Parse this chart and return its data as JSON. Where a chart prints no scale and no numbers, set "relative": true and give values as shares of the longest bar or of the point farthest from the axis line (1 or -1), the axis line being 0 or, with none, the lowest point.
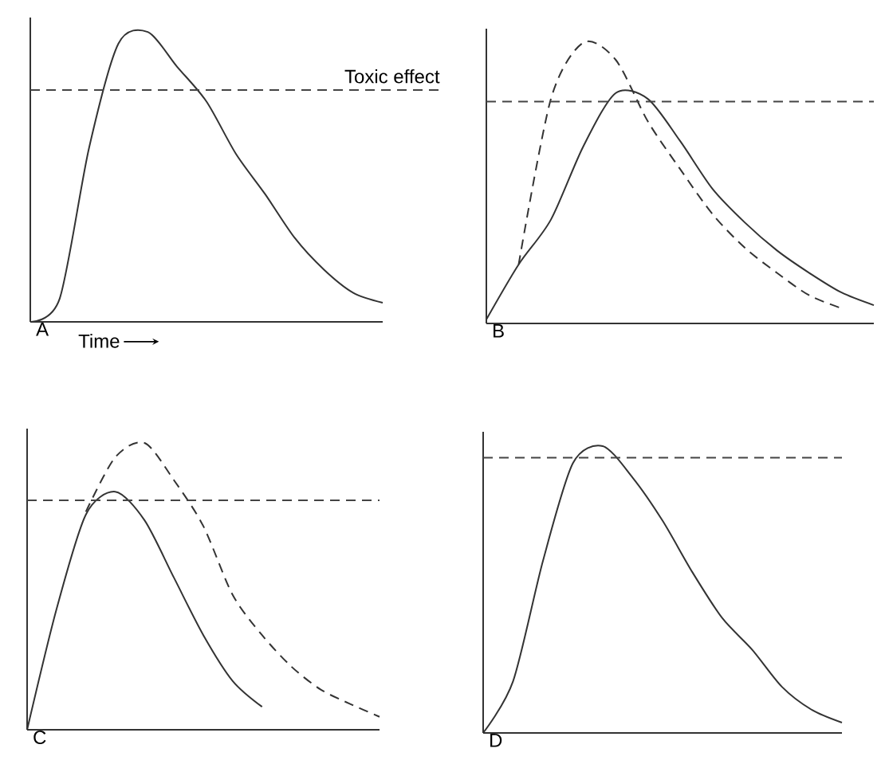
{
  "chart_data": [
    {
      "type": "line",
      "title": "A",
      "xlabel": "Time",
      "relative": true,
      "categories": [
        null,
        null,
        null,
        null,
        null,
        null,
        null,
        null,
        null,
        null,
        null,
        null,
        null
      ],
      "series": [
        {
          "color": "#333333",
          "line_style": "solid",
          "values": [
            0,
            0.08,
            0.6,
            0.96,
            1.0,
            0.88,
            0.76,
            0.58,
            0.44,
            0.29,
            0.18,
            0.1,
            0.066
          ]
        }
      ],
      "ref_lines": [
        {
          "axis": "y",
          "value": 0.8,
          "label": "Toxic effect",
          "line_style": "dashed",
          "color": "#444444"
        }
      ]
    },
    {
      "type": "line",
      "title": "B",
      "relative": true,
      "categories": [
        null,
        null,
        null,
        null,
        null,
        null,
        null,
        null,
        null,
        null,
        null,
        null,
        null
      ],
      "series": [
        {
          "color": "#333333",
          "line_style": "solid",
          "values": [
            0.014,
            0.21,
            0.37,
            0.63,
            0.82,
            0.8,
            0.65,
            0.48,
            0.36,
            0.26,
            0.18,
            0.11,
            0.065
          ]
        },
        {
          "color": "#333333",
          "line_style": "dashed",
          "values": [
            null,
            0.21,
            0.8,
            1.0,
            0.94,
            0.72,
            0.55,
            0.39,
            0.27,
            0.18,
            0.1,
            0.054,
            null
          ]
        }
      ],
      "ref_lines": [
        {
          "axis": "y",
          "value": 0.79,
          "line_style": "dashed",
          "color": "#444444"
        }
      ]
    },
    {
      "type": "line",
      "title": "C",
      "relative": true,
      "categories": [
        null,
        null,
        null,
        null,
        null,
        null,
        null,
        null,
        null,
        null,
        null,
        null,
        null
      ],
      "series": [
        {
          "color": "#333333",
          "line_style": "solid",
          "values": [
            0,
            0.42,
            0.75,
            0.83,
            0.73,
            0.53,
            0.33,
            0.17,
            0.08,
            null,
            null,
            null,
            null
          ]
        },
        {
          "color": "#333333",
          "line_style": "dashed",
          "values": [
            null,
            null,
            0.76,
            0.95,
            1.0,
            0.87,
            0.71,
            0.47,
            0.33,
            0.22,
            0.14,
            0.09,
            0.045
          ]
        }
      ],
      "ref_lines": [
        {
          "axis": "y",
          "value": 0.8,
          "line_style": "dashed",
          "color": "#444444"
        }
      ]
    },
    {
      "type": "line",
      "title": "D",
      "relative": true,
      "categories": [
        null,
        null,
        null,
        null,
        null,
        null,
        null,
        null,
        null,
        null,
        null,
        null,
        null
      ],
      "series": [
        {
          "color": "#333333",
          "line_style": "solid",
          "values": [
            0,
            0.18,
            0.6,
            0.94,
            1.0,
            0.89,
            0.74,
            0.56,
            0.4,
            0.29,
            0.16,
            0.08,
            0.036
          ]
        }
      ],
      "ref_lines": [
        {
          "axis": "y",
          "value": 0.96,
          "line_style": "dashed",
          "color": "#444444"
        }
      ]
    }
  ]
}
